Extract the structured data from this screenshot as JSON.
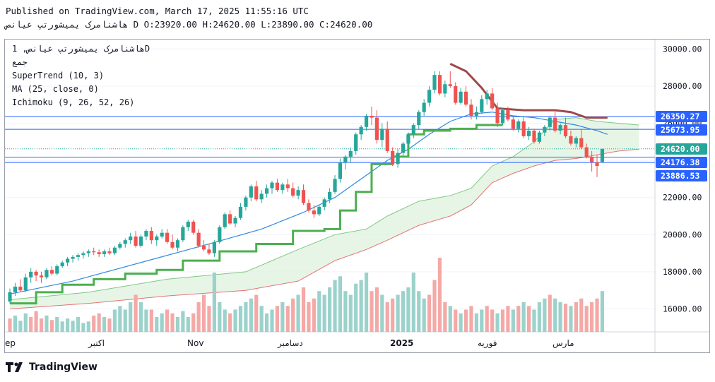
{
  "header": {
    "published": "Published on TradingView.com, March 17, 2025 11:55:16 UTC",
    "ohlc_line": "هاشنامرک یمیشورتپ عیانص D O:23920.00 H:24620.00 L:23890.00 C:24620.00"
  },
  "legend": {
    "symbol": "هاشنامرک یمیشورتپ عیانص, 1D",
    "exchange": "جمع",
    "supertrend": "SuperTrend (10, 3)",
    "ma": "MA (25, close, 0)",
    "ichimoku": "Ichimoku (9, 26, 52, 26)"
  },
  "branding": {
    "logo_text": "TradingView"
  },
  "colors": {
    "up": "#26a69a",
    "down": "#ef5350",
    "volume_up": "#9bd2cb",
    "volume_down": "#f4a9a7",
    "supertrend_up": "#4caf50",
    "supertrend_down": "#a0494a",
    "ma": "#2f8ae0",
    "cloud": "#ddf1dd",
    "price_lines": "#2962ff",
    "tag_bg": "#2962ff",
    "last_price_tag": "#26a69a"
  },
  "chart_data": {
    "type": "candlestick",
    "y_axis": {
      "ticks": [
        16000,
        18000,
        20000,
        22000,
        24000,
        26000,
        28000,
        30000
      ],
      "tick_labels": [
        "16000.00",
        "18000.00",
        "20000.00",
        "22000.00",
        "24000.00",
        "26000.00",
        "28000.00",
        "30000.00"
      ],
      "ylim": [
        14700,
        30500
      ],
      "position": "right"
    },
    "x_axis": {
      "labels": [
        "ep",
        "اکتبر",
        "Nov",
        "دسامبر",
        "2025",
        "فوریه",
        "مارس"
      ]
    },
    "price_tags": [
      {
        "value": 26350.27,
        "label": "26350.27",
        "style": "line"
      },
      {
        "value": 25673.95,
        "label": "25673.95",
        "style": "line"
      },
      {
        "value": 24620.0,
        "label": "24620.00",
        "style": "last"
      },
      {
        "value": 24176.38,
        "label": "24176.38",
        "style": "line"
      },
      {
        "value": 23886.53,
        "label": "23886.53",
        "style": "line"
      }
    ],
    "candles": [
      [
        16400,
        17100,
        16300,
        16900
      ],
      [
        16900,
        17400,
        16700,
        17200
      ],
      [
        17200,
        17600,
        16900,
        17000
      ],
      [
        17000,
        17900,
        16900,
        17700
      ],
      [
        17700,
        18200,
        17400,
        18000
      ],
      [
        18000,
        18100,
        17500,
        17800
      ],
      [
        17800,
        18000,
        17400,
        17700
      ],
      [
        17700,
        18200,
        17600,
        18100
      ],
      [
        18100,
        18300,
        17800,
        17900
      ],
      [
        17900,
        18400,
        17800,
        18300
      ],
      [
        18300,
        18600,
        18200,
        18500
      ],
      [
        18500,
        18800,
        18300,
        18700
      ],
      [
        18700,
        18900,
        18500,
        18800
      ],
      [
        18800,
        19000,
        18600,
        18900
      ],
      [
        18900,
        19100,
        18700,
        19000
      ],
      [
        19000,
        19200,
        18800,
        19100
      ],
      [
        19100,
        19300,
        18900,
        19050
      ],
      [
        19050,
        19200,
        18800,
        18950
      ],
      [
        18950,
        19200,
        18800,
        19100
      ],
      [
        19100,
        19300,
        18900,
        19000
      ],
      [
        19000,
        19400,
        18900,
        19300
      ],
      [
        19300,
        19600,
        19200,
        19500
      ],
      [
        19500,
        19800,
        19300,
        19700
      ],
      [
        19700,
        20100,
        19500,
        19900
      ],
      [
        19900,
        20200,
        19300,
        19400
      ],
      [
        19400,
        20000,
        19300,
        19900
      ],
      [
        19900,
        20300,
        19700,
        20200
      ],
      [
        20200,
        20400,
        19500,
        19700
      ],
      [
        19700,
        20000,
        19400,
        19900
      ],
      [
        19900,
        20300,
        19800,
        20100
      ],
      [
        20100,
        20300,
        19500,
        19600
      ],
      [
        19600,
        20000,
        19200,
        19300
      ],
      [
        19300,
        19800,
        19100,
        19700
      ],
      [
        19700,
        20500,
        19600,
        20400
      ],
      [
        20400,
        20800,
        20200,
        20700
      ],
      [
        20700,
        20800,
        20000,
        20100
      ],
      [
        20100,
        20300,
        19300,
        19400
      ],
      [
        19400,
        19700,
        19100,
        19200
      ],
      [
        19200,
        19500,
        18900,
        19000
      ],
      [
        19000,
        19700,
        18800,
        19600
      ],
      [
        19600,
        20500,
        19500,
        20400
      ],
      [
        20400,
        21200,
        20300,
        21100
      ],
      [
        21100,
        21300,
        20500,
        20600
      ],
      [
        20600,
        21000,
        20400,
        20900
      ],
      [
        20900,
        21700,
        20800,
        21500
      ],
      [
        21500,
        22100,
        21300,
        22000
      ],
      [
        22000,
        22700,
        21800,
        22600
      ],
      [
        22600,
        22900,
        21800,
        21900
      ],
      [
        21900,
        22400,
        21700,
        22200
      ],
      [
        22200,
        22700,
        22000,
        22500
      ],
      [
        22500,
        22900,
        22200,
        22800
      ],
      [
        22800,
        23000,
        22300,
        22400
      ],
      [
        22400,
        22800,
        22200,
        22700
      ],
      [
        22700,
        23000,
        22300,
        22500
      ],
      [
        22500,
        22800,
        22000,
        22100
      ],
      [
        22100,
        22600,
        21900,
        22400
      ],
      [
        22400,
        22700,
        21600,
        21700
      ],
      [
        21700,
        21900,
        21200,
        21300
      ],
      [
        21300,
        21600,
        20900,
        21100
      ],
      [
        21100,
        21600,
        21000,
        21500
      ],
      [
        21500,
        22000,
        21300,
        21900
      ],
      [
        21900,
        22500,
        21700,
        22300
      ],
      [
        22300,
        23200,
        22200,
        23000
      ],
      [
        23000,
        24100,
        22800,
        23900
      ],
      [
        23900,
        24300,
        23500,
        24200
      ],
      [
        24200,
        24700,
        23900,
        24500
      ],
      [
        24500,
        25500,
        24300,
        25400
      ],
      [
        25400,
        25900,
        25100,
        25800
      ],
      [
        25800,
        26500,
        25600,
        26400
      ],
      [
        26400,
        26900,
        25900,
        26300
      ],
      [
        26300,
        26700,
        24900,
        25100
      ],
      [
        25100,
        26000,
        24700,
        25700
      ],
      [
        25700,
        26100,
        24400,
        24500
      ],
      [
        24500,
        24700,
        23700,
        23800
      ],
      [
        23800,
        24600,
        23600,
        24400
      ],
      [
        24400,
        25000,
        24200,
        24900
      ],
      [
        24900,
        25500,
        24700,
        25400
      ],
      [
        25400,
        26000,
        25200,
        25900
      ],
      [
        25900,
        26700,
        25700,
        26600
      ],
      [
        26600,
        27300,
        26400,
        27100
      ],
      [
        27100,
        28000,
        26900,
        27800
      ],
      [
        27800,
        28800,
        27600,
        28600
      ],
      [
        28600,
        28800,
        27500,
        27600
      ],
      [
        27600,
        28300,
        27400,
        28100
      ],
      [
        28100,
        28800,
        27900,
        28000
      ],
      [
        28000,
        28200,
        27000,
        27100
      ],
      [
        27100,
        27900,
        27000,
        27700
      ],
      [
        27700,
        28000,
        26900,
        27000
      ],
      [
        27000,
        27300,
        26200,
        26400
      ],
      [
        26400,
        26900,
        26200,
        26600
      ],
      [
        26600,
        27500,
        26500,
        27300
      ],
      [
        27300,
        27800,
        27000,
        27600
      ],
      [
        27600,
        27900,
        26700,
        26800
      ],
      [
        26800,
        27100,
        25800,
        26000
      ],
      [
        26000,
        26800,
        25900,
        26700
      ],
      [
        26700,
        26900,
        26100,
        26200
      ],
      [
        26200,
        26400,
        25600,
        25700
      ],
      [
        25700,
        26200,
        25500,
        26100
      ],
      [
        26100,
        26400,
        25200,
        25300
      ],
      [
        25300,
        25800,
        25100,
        25600
      ],
      [
        25600,
        25700,
        24900,
        25000
      ],
      [
        25000,
        25600,
        24900,
        25500
      ],
      [
        25500,
        25900,
        25300,
        25800
      ],
      [
        25800,
        26400,
        25600,
        26300
      ],
      [
        26300,
        26700,
        25500,
        25600
      ],
      [
        25600,
        26000,
        25400,
        25900
      ],
      [
        25900,
        26300,
        25200,
        25300
      ],
      [
        25300,
        25600,
        24800,
        24900
      ],
      [
        24900,
        25300,
        24700,
        25200
      ],
      [
        25200,
        25700,
        24600,
        24700
      ],
      [
        24700,
        24900,
        24100,
        24200
      ],
      [
        24200,
        24500,
        23400,
        23900
      ],
      [
        23900,
        24300,
        23100,
        23700
      ],
      [
        23920,
        24620,
        23890,
        24620
      ]
    ],
    "volume_bars": [
      [
        0.18,
        0
      ],
      [
        0.22,
        1
      ],
      [
        0.15,
        1
      ],
      [
        0.25,
        1
      ],
      [
        0.2,
        0
      ],
      [
        0.28,
        0
      ],
      [
        0.18,
        0
      ],
      [
        0.22,
        1
      ],
      [
        0.16,
        0
      ],
      [
        0.2,
        1
      ],
      [
        0.14,
        1
      ],
      [
        0.18,
        1
      ],
      [
        0.15,
        1
      ],
      [
        0.2,
        1
      ],
      [
        0.12,
        1
      ],
      [
        0.14,
        1
      ],
      [
        0.22,
        0
      ],
      [
        0.25,
        0
      ],
      [
        0.2,
        1
      ],
      [
        0.18,
        0
      ],
      [
        0.3,
        1
      ],
      [
        0.35,
        1
      ],
      [
        0.3,
        1
      ],
      [
        0.4,
        1
      ],
      [
        0.5,
        0
      ],
      [
        0.4,
        1
      ],
      [
        0.3,
        1
      ],
      [
        0.3,
        0
      ],
      [
        0.2,
        1
      ],
      [
        0.25,
        1
      ],
      [
        0.3,
        0
      ],
      [
        0.25,
        0
      ],
      [
        0.2,
        1
      ],
      [
        0.28,
        1
      ],
      [
        0.2,
        1
      ],
      [
        0.25,
        0
      ],
      [
        0.4,
        0
      ],
      [
        0.5,
        0
      ],
      [
        0.35,
        0
      ],
      [
        0.8,
        1
      ],
      [
        0.4,
        1
      ],
      [
        0.3,
        1
      ],
      [
        0.25,
        0
      ],
      [
        0.3,
        1
      ],
      [
        0.35,
        1
      ],
      [
        0.4,
        1
      ],
      [
        0.45,
        1
      ],
      [
        0.5,
        0
      ],
      [
        0.35,
        1
      ],
      [
        0.25,
        1
      ],
      [
        0.3,
        1
      ],
      [
        0.35,
        0
      ],
      [
        0.4,
        1
      ],
      [
        0.35,
        0
      ],
      [
        0.45,
        0
      ],
      [
        0.5,
        1
      ],
      [
        0.6,
        0
      ],
      [
        0.4,
        0
      ],
      [
        0.45,
        0
      ],
      [
        0.55,
        1
      ],
      [
        0.5,
        1
      ],
      [
        0.6,
        1
      ],
      [
        0.7,
        1
      ],
      [
        0.75,
        1
      ],
      [
        0.55,
        1
      ],
      [
        0.5,
        1
      ],
      [
        0.65,
        1
      ],
      [
        0.7,
        1
      ],
      [
        0.8,
        1
      ],
      [
        0.55,
        0
      ],
      [
        0.6,
        0
      ],
      [
        0.5,
        1
      ],
      [
        0.4,
        0
      ],
      [
        0.45,
        0
      ],
      [
        0.5,
        1
      ],
      [
        0.55,
        1
      ],
      [
        0.6,
        1
      ],
      [
        0.8,
        1
      ],
      [
        0.55,
        1
      ],
      [
        0.45,
        1
      ],
      [
        0.5,
        0
      ],
      [
        0.7,
        0
      ],
      [
        1.0,
        0
      ],
      [
        0.4,
        0
      ],
      [
        0.35,
        1
      ],
      [
        0.3,
        0
      ],
      [
        0.25,
        1
      ],
      [
        0.3,
        0
      ],
      [
        0.35,
        0
      ],
      [
        0.25,
        1
      ],
      [
        0.3,
        1
      ],
      [
        0.35,
        0
      ],
      [
        0.3,
        0
      ],
      [
        0.25,
        1
      ],
      [
        0.3,
        0
      ],
      [
        0.35,
        0
      ],
      [
        0.3,
        1
      ],
      [
        0.35,
        0
      ],
      [
        0.4,
        1
      ],
      [
        0.35,
        0
      ],
      [
        0.3,
        1
      ],
      [
        0.4,
        1
      ],
      [
        0.45,
        1
      ],
      [
        0.5,
        0
      ],
      [
        0.45,
        1
      ],
      [
        0.4,
        1
      ],
      [
        0.38,
        0
      ],
      [
        0.35,
        1
      ],
      [
        0.4,
        0
      ],
      [
        0.45,
        0
      ],
      [
        0.35,
        0
      ],
      [
        0.4,
        0
      ],
      [
        0.45,
        0
      ],
      [
        0.55,
        1
      ]
    ],
    "supertrend": {
      "up_segments": [
        [
          0,
          16300
        ],
        [
          5,
          16900
        ],
        [
          10,
          17300
        ],
        [
          16,
          17600
        ],
        [
          22,
          17900
        ],
        [
          28,
          18100
        ],
        [
          33,
          18600
        ],
        [
          40,
          19100
        ],
        [
          47,
          19500
        ],
        [
          54,
          20200
        ],
        [
          60,
          20300
        ],
        [
          63,
          21300
        ],
        [
          66,
          22300
        ],
        [
          69,
          23800
        ],
        [
          73,
          24200
        ],
        [
          76,
          25400
        ],
        [
          79,
          25600
        ],
        [
          84,
          25700
        ],
        [
          89,
          25900
        ],
        [
          94,
          25900
        ]
      ],
      "down_segments": [
        [
          84,
          29200
        ],
        [
          87,
          28800
        ],
        [
          90,
          27900
        ],
        [
          93,
          26800
        ],
        [
          98,
          26700
        ],
        [
          104,
          26700
        ],
        [
          107,
          26600
        ],
        [
          110,
          26300
        ],
        [
          114,
          26300
        ]
      ]
    },
    "ma_values": [
      [
        0,
        16800
      ],
      [
        12,
        17500
      ],
      [
        25,
        18500
      ],
      [
        38,
        19500
      ],
      [
        48,
        20300
      ],
      [
        56,
        21200
      ],
      [
        62,
        22000
      ],
      [
        68,
        23200
      ],
      [
        72,
        24000
      ],
      [
        76,
        24600
      ],
      [
        80,
        25400
      ],
      [
        84,
        26100
      ],
      [
        88,
        26500
      ],
      [
        92,
        26600
      ],
      [
        96,
        26400
      ],
      [
        100,
        26300
      ],
      [
        104,
        26100
      ],
      [
        108,
        25900
      ],
      [
        112,
        25600
      ],
      [
        114,
        25400
      ]
    ],
    "ichimoku_cloud": {
      "top": [
        [
          0,
          16500
        ],
        [
          15,
          16900
        ],
        [
          30,
          17600
        ],
        [
          45,
          18000
        ],
        [
          55,
          19200
        ],
        [
          62,
          20000
        ],
        [
          68,
          20300
        ],
        [
          72,
          21000
        ],
        [
          78,
          21800
        ],
        [
          84,
          22100
        ],
        [
          88,
          22500
        ],
        [
          92,
          23700
        ],
        [
          96,
          24200
        ],
        [
          100,
          25000
        ],
        [
          104,
          26200
        ],
        [
          108,
          26300
        ],
        [
          112,
          26100
        ],
        [
          116,
          26000
        ],
        [
          120,
          25900
        ]
      ],
      "bottom": [
        [
          0,
          16000
        ],
        [
          15,
          16300
        ],
        [
          30,
          16700
        ],
        [
          45,
          17000
        ],
        [
          55,
          17500
        ],
        [
          62,
          18600
        ],
        [
          68,
          19200
        ],
        [
          72,
          19700
        ],
        [
          78,
          20500
        ],
        [
          84,
          21000
        ],
        [
          88,
          21600
        ],
        [
          92,
          22800
        ],
        [
          96,
          23300
        ],
        [
          100,
          23700
        ],
        [
          104,
          24000
        ],
        [
          108,
          24100
        ],
        [
          112,
          24300
        ],
        [
          116,
          24500
        ],
        [
          120,
          24600
        ]
      ]
    }
  }
}
